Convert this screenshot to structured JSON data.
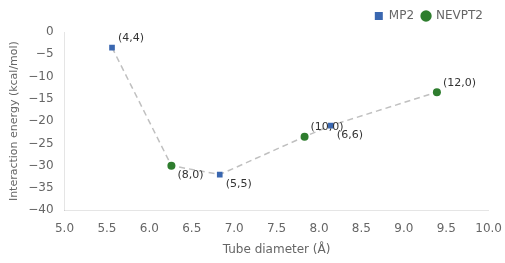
{
  "chart_data": {
    "type": "scatter",
    "xlabel": "Tube diameter (Å)",
    "ylabel": "Interaction energy (kcal/mol)",
    "xlim": [
      5,
      10
    ],
    "ylim": [
      -40,
      0
    ],
    "xticks": [
      {
        "value": 5,
        "label": "5.0"
      },
      {
        "value": 5.5,
        "label": "5.5"
      },
      {
        "value": 6,
        "label": "6.0"
      },
      {
        "value": 6.5,
        "label": "6.5"
      },
      {
        "value": 7,
        "label": "7.0"
      },
      {
        "value": 7.5,
        "label": "7.5"
      },
      {
        "value": 8,
        "label": "8.0"
      },
      {
        "value": 8.5,
        "label": "8.5"
      },
      {
        "value": 9,
        "label": "9.0"
      },
      {
        "value": 9.5,
        "label": "9.5"
      },
      {
        "value": 10,
        "label": "10.0"
      }
    ],
    "yticks": [
      0,
      {
        "value": -5,
        "label": "−5"
      },
      {
        "value": -10,
        "label": "−10"
      },
      {
        "value": -15,
        "label": "−15"
      },
      {
        "value": -20,
        "label": "−20"
      },
      {
        "value": -25,
        "label": "−25"
      },
      {
        "value": -30,
        "label": "−30"
      },
      {
        "value": -35,
        "label": "−35"
      },
      {
        "value": -40,
        "label": "−40"
      }
    ],
    "grid": false,
    "legend": "upper right",
    "series": [
      {
        "type": "line",
        "line_style": "dashed",
        "marker": "none",
        "color": "#c0c0c0",
        "x": [
          5.56,
          6.26,
          6.83,
          7.83,
          8.14,
          9.39
        ],
        "values": [
          -3.5,
          -30.0,
          -32.0,
          -23.5,
          -21.0,
          -13.5
        ]
      },
      {
        "type": "scatter",
        "name": "MP2",
        "color": "#3a67b0",
        "marker": "square",
        "x": [
          5.56,
          6.83,
          8.14
        ],
        "values": [
          -3.5,
          -32.0,
          -21.0
        ]
      },
      {
        "type": "scatter",
        "name": "NEVPT2",
        "color": "#2e7d2e",
        "marker": "circle",
        "x": [
          6.26,
          7.83,
          9.39
        ],
        "values": [
          -30.0,
          -23.5,
          -13.5
        ]
      }
    ],
    "annotations": [
      {
        "text": "(4,4)",
        "x": 5.56,
        "y": -3.5
      },
      {
        "text": "(5,5)",
        "x": 6.83,
        "y": -32.0
      },
      {
        "text": "(6,6)",
        "x": 8.14,
        "y": -21.0
      },
      {
        "text": "(8,0)",
        "x": 6.26,
        "y": -30.0
      },
      {
        "text": "(10,0)",
        "x": 7.83,
        "y": -23.5
      },
      {
        "text": "(12,0)",
        "x": 9.39,
        "y": -13.5
      }
    ]
  }
}
